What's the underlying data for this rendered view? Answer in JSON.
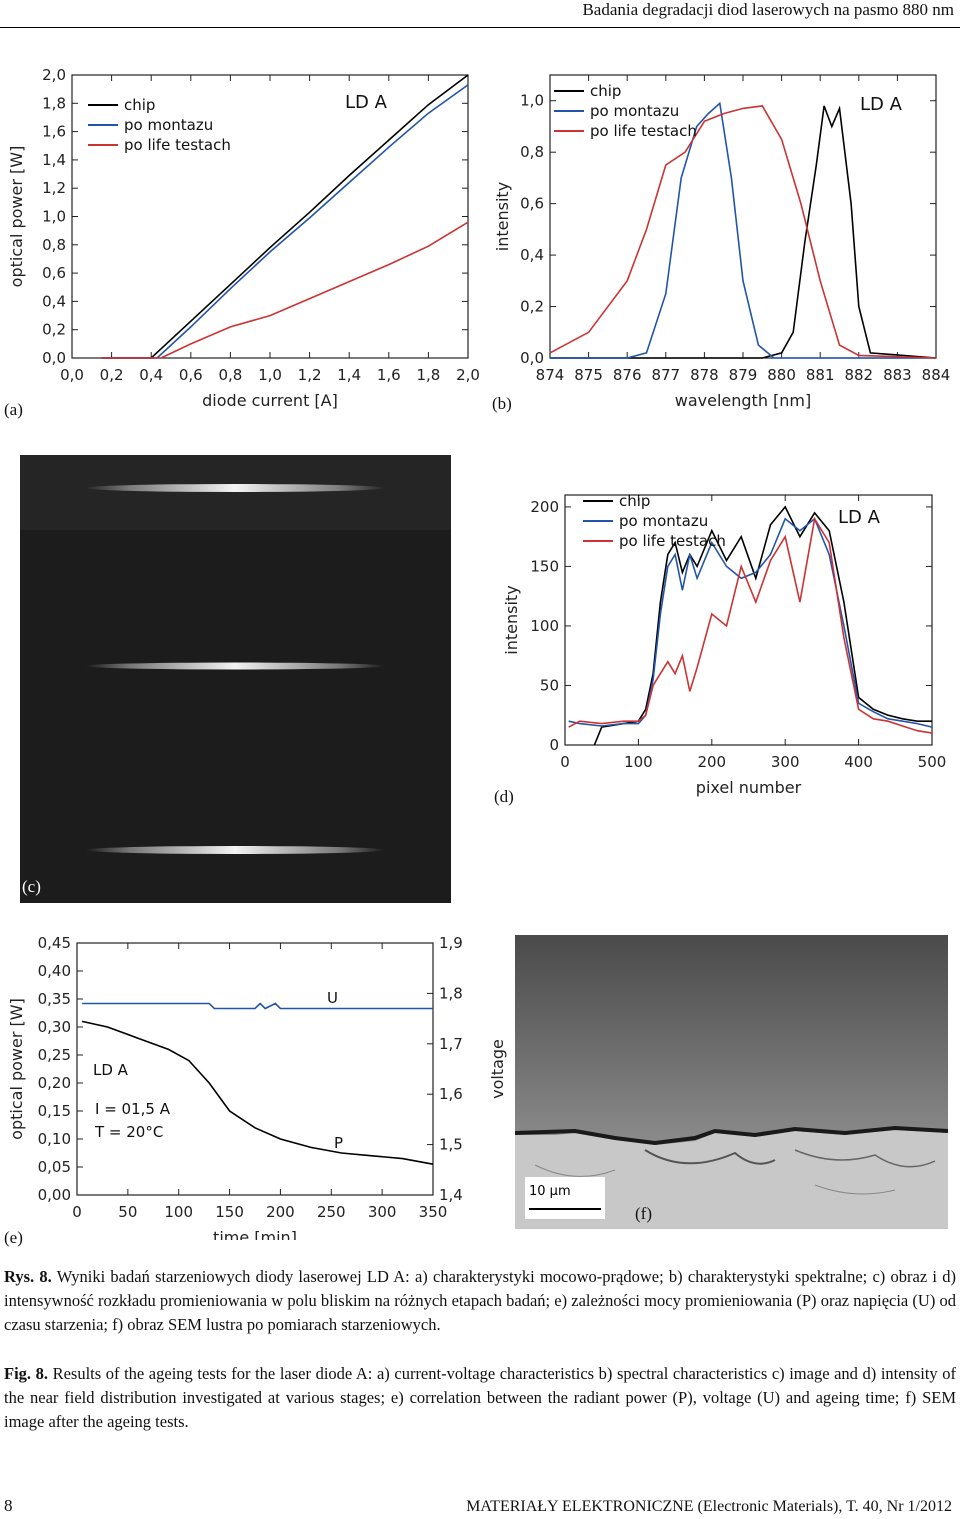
{
  "header": {
    "running_title": "Badania degradacji diod laserowych na pasmo 880 nm"
  },
  "labels": {
    "a": "(a)",
    "b": "(b)",
    "c": "(c)",
    "d": "(d)",
    "e": "(e)",
    "f": "(f)"
  },
  "chart_data": [
    {
      "id": "a",
      "type": "line",
      "xlabel": "diode current [A]",
      "ylabel": "optical power [W]",
      "xlim": [
        0,
        2.0
      ],
      "ylim": [
        0,
        2.0
      ],
      "xticks": [
        "0,0",
        "0,2",
        "0,4",
        "0,6",
        "0,8",
        "1,0",
        "1,2",
        "1,4",
        "1,6",
        "1,8",
        "2,0"
      ],
      "yticks": [
        "0,0",
        "0,2",
        "0,4",
        "0,6",
        "0,8",
        "1,0",
        "1,2",
        "1,4",
        "1,6",
        "1,8",
        "2,0"
      ],
      "annotation": "LD  A",
      "series": [
        {
          "name": "chip",
          "color": "#000000",
          "x": [
            0.15,
            0.4,
            0.6,
            0.8,
            1.0,
            1.2,
            1.4,
            1.6,
            1.8,
            2.0
          ],
          "y": [
            0,
            0,
            0.26,
            0.52,
            0.78,
            1.03,
            1.29,
            1.54,
            1.79,
            2.0
          ]
        },
        {
          "name": "po montazu",
          "color": "#2255aa",
          "x": [
            0.15,
            0.43,
            0.6,
            0.8,
            1.0,
            1.2,
            1.4,
            1.6,
            1.8,
            2.0
          ],
          "y": [
            0,
            0,
            0.22,
            0.49,
            0.75,
            0.99,
            1.24,
            1.49,
            1.73,
            1.93
          ]
        },
        {
          "name": "po life testach",
          "color": "#cc3333",
          "x": [
            0.15,
            0.45,
            0.6,
            0.8,
            1.0,
            1.2,
            1.4,
            1.6,
            1.8,
            2.0
          ],
          "y": [
            0,
            0,
            0.1,
            0.22,
            0.3,
            0.42,
            0.54,
            0.66,
            0.79,
            0.96
          ]
        }
      ]
    },
    {
      "id": "b",
      "type": "line",
      "xlabel": "wavelength  [nm]",
      "ylabel": "intensity",
      "xlim": [
        874,
        884
      ],
      "ylim": [
        0,
        1.1
      ],
      "xticks": [
        "874",
        "875",
        "876",
        "877",
        "878",
        "879",
        "880",
        "881",
        "882",
        "883",
        "884"
      ],
      "yticks": [
        "0,0",
        "0,2",
        "0,4",
        "0,6",
        "0,8",
        "1,0"
      ],
      "annotation": "LD  A",
      "series": [
        {
          "name": "chip",
          "color": "#000000",
          "x": [
            874,
            879.5,
            880,
            880.3,
            880.6,
            880.9,
            881.1,
            881.3,
            881.5,
            881.8,
            882,
            882.3,
            884
          ],
          "y": [
            0,
            0,
            0.02,
            0.1,
            0.45,
            0.75,
            0.98,
            0.9,
            0.97,
            0.6,
            0.2,
            0.02,
            0
          ]
        },
        {
          "name": "po montazu",
          "color": "#2255aa",
          "x": [
            874,
            876,
            876.5,
            877,
            877.4,
            877.8,
            878.1,
            878.4,
            878.7,
            879,
            879.4,
            879.8,
            884
          ],
          "y": [
            0,
            0,
            0.02,
            0.25,
            0.7,
            0.9,
            0.95,
            0.99,
            0.7,
            0.3,
            0.05,
            0,
            0
          ]
        },
        {
          "name": "po life testach",
          "color": "#cc3333",
          "x": [
            874,
            875,
            876,
            876.5,
            877,
            877.5,
            878,
            878.5,
            879,
            879.5,
            880,
            880.5,
            881,
            881.5,
            882,
            884
          ],
          "y": [
            0.02,
            0.1,
            0.3,
            0.5,
            0.75,
            0.8,
            0.92,
            0.95,
            0.97,
            0.98,
            0.85,
            0.6,
            0.3,
            0.05,
            0.01,
            0
          ]
        }
      ]
    },
    {
      "id": "d",
      "type": "line",
      "xlabel": "pixel number",
      "ylabel": "intensity",
      "xlim": [
        0,
        500
      ],
      "ylim": [
        0,
        210
      ],
      "xticks": [
        "0",
        "100",
        "200",
        "300",
        "400",
        "500"
      ],
      "yticks": [
        "0",
        "50",
        "100",
        "150",
        "200"
      ],
      "annotation": "LD  A",
      "series": [
        {
          "name": "chip",
          "color": "#000000",
          "x": [
            40,
            50,
            80,
            100,
            110,
            120,
            130,
            140,
            150,
            160,
            170,
            180,
            200,
            220,
            240,
            260,
            280,
            300,
            320,
            340,
            360,
            380,
            400,
            420,
            440,
            460,
            480,
            500
          ],
          "y": [
            0,
            15,
            18,
            20,
            30,
            60,
            120,
            160,
            170,
            145,
            160,
            150,
            180,
            155,
            175,
            140,
            185,
            200,
            175,
            195,
            180,
            120,
            40,
            30,
            25,
            22,
            20,
            20
          ]
        },
        {
          "name": "po montazu",
          "color": "#2255aa",
          "x": [
            5,
            20,
            50,
            80,
            100,
            110,
            120,
            130,
            140,
            150,
            160,
            170,
            180,
            200,
            220,
            240,
            260,
            280,
            300,
            320,
            340,
            360,
            380,
            400,
            420,
            440,
            460,
            480,
            500
          ],
          "y": [
            20,
            18,
            16,
            18,
            18,
            25,
            55,
            110,
            150,
            160,
            130,
            160,
            140,
            170,
            150,
            140,
            145,
            160,
            190,
            180,
            190,
            160,
            100,
            35,
            28,
            22,
            20,
            18,
            15
          ]
        },
        {
          "name": "po life testach",
          "color": "#cc3333",
          "x": [
            5,
            20,
            50,
            80,
            100,
            110,
            120,
            130,
            140,
            150,
            160,
            170,
            180,
            200,
            220,
            240,
            260,
            280,
            300,
            320,
            340,
            360,
            380,
            400,
            420,
            440,
            460,
            480,
            500
          ],
          "y": [
            15,
            20,
            18,
            20,
            20,
            25,
            50,
            60,
            70,
            60,
            75,
            45,
            65,
            110,
            100,
            150,
            120,
            155,
            175,
            120,
            190,
            170,
            90,
            30,
            22,
            20,
            16,
            12,
            10
          ]
        }
      ]
    },
    {
      "id": "e",
      "type": "line",
      "xlabel": "time [min]",
      "ylabel": "optical power [W]",
      "y2label": "voltage",
      "xlim": [
        0,
        350
      ],
      "ylim": [
        0,
        0.45
      ],
      "y2lim": [
        1.4,
        1.9
      ],
      "xticks": [
        "0",
        "50",
        "100",
        "150",
        "200",
        "250",
        "300",
        "350"
      ],
      "yticks": [
        "0,00",
        "0,05",
        "0,10",
        "0,15",
        "0,20",
        "0,25",
        "0,30",
        "0,35",
        "0,40",
        "0,45"
      ],
      "y2ticks": [
        "1,4",
        "1,5",
        "1,6",
        "1,7",
        "1,8",
        "1,9"
      ],
      "annotations": [
        "LD  A",
        "I = 01,5 A",
        "T = 20°C",
        "U",
        "P"
      ],
      "series": [
        {
          "name": "U",
          "color": "#2255aa",
          "axis": "right",
          "x": [
            5,
            130,
            135,
            175,
            180,
            185,
            195,
            200,
            205,
            350
          ],
          "y": [
            1.78,
            1.78,
            1.77,
            1.77,
            1.78,
            1.77,
            1.78,
            1.77,
            1.77,
            1.77
          ]
        },
        {
          "name": "P",
          "color": "#000000",
          "axis": "left",
          "x": [
            5,
            30,
            60,
            90,
            110,
            130,
            150,
            175,
            200,
            230,
            260,
            290,
            320,
            350
          ],
          "y": [
            0.31,
            0.3,
            0.28,
            0.26,
            0.24,
            0.2,
            0.15,
            0.12,
            0.1,
            0.085,
            0.075,
            0.07,
            0.065,
            0.055
          ]
        }
      ]
    }
  ],
  "sem": {
    "scale_label": "10 µm"
  },
  "caption": {
    "pl_label": "Rys. 8.",
    "pl_text": " Wyniki badań starzeniowych diody laserowej LD A: a) charakterystyki mocowo-prądowe; b) charakterystyki spektralne; c) obraz i d) intensywność rozkładu promieniowania w polu bliskim na różnych etapach badań; e) zależności mocy promieniowania (P) oraz napięcia (U) od czasu starzenia; f) obraz SEM lustra po pomiarach starzeniowych.",
    "en_label": "Fig. 8.",
    "en_text": " Results of the ageing tests for the laser diode A: a) current-voltage characteristics b) spectral characteristics c) image and d) intensity of the near field distribution investigated at various stages; e) correlation between the radiant power (P), voltage (U) and ageing time; f) SEM image after the ageing tests."
  },
  "footer": {
    "page_number": "8",
    "journal": "MATERIAŁY ELEKTRONICZNE (Electronic Materials), T. 40, Nr 1/2012"
  }
}
